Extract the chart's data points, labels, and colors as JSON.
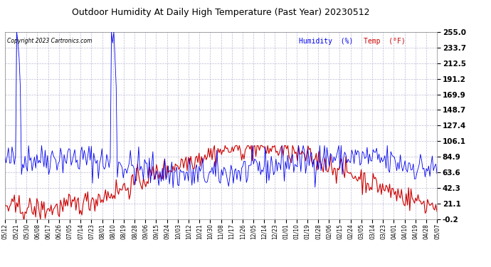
{
  "title": "Outdoor Humidity At Daily High Temperature (Past Year) 20230512",
  "copyright": "Copyright 2023 Cartronics.com",
  "legend_humidity": "Humidity  (%)",
  "legend_temp": "Temp  (°F)",
  "humidity_color": "#0000ee",
  "temp_color": "#cc0000",
  "background_color": "#ffffff",
  "grid_color": "#aaaacc",
  "yticks": [
    255.0,
    233.7,
    212.5,
    191.2,
    169.9,
    148.7,
    127.4,
    106.1,
    84.9,
    63.6,
    42.3,
    21.1,
    -0.2
  ],
  "ylim": [
    -0.2,
    255.0
  ],
  "xlabels": [
    "05/12",
    "05/21",
    "05/30",
    "06/08",
    "06/17",
    "06/26",
    "07/05",
    "07/14",
    "07/23",
    "08/01",
    "08/10",
    "08/19",
    "08/28",
    "09/06",
    "09/15",
    "09/24",
    "10/03",
    "10/12",
    "10/21",
    "10/30",
    "11/08",
    "11/17",
    "11/26",
    "12/05",
    "12/14",
    "12/23",
    "01/01",
    "01/10",
    "01/19",
    "01/28",
    "02/06",
    "02/15",
    "02/24",
    "03/05",
    "03/14",
    "03/23",
    "04/01",
    "04/10",
    "04/19",
    "04/28",
    "05/07"
  ],
  "n_points": 366
}
